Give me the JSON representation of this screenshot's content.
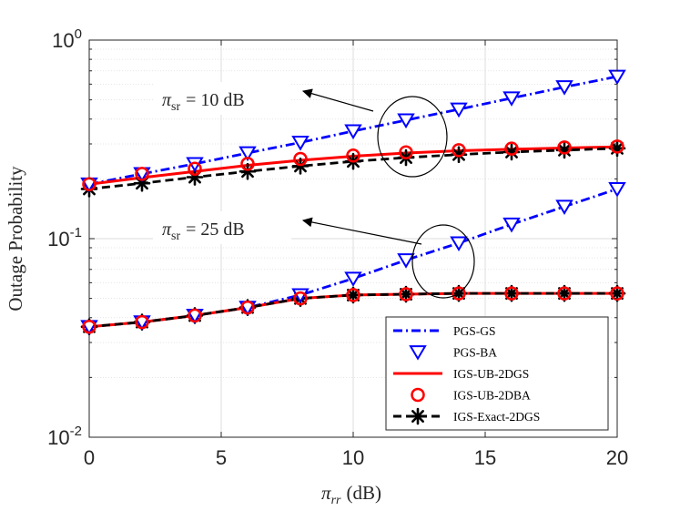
{
  "chart_data": {
    "type": "line",
    "xlabel_symbol": "π",
    "xlabel_sub": "rr",
    "xlabel_unit": "(dB)",
    "ylabel": "Outage Probability",
    "yscale": "log",
    "xlim": [
      0,
      20
    ],
    "ylim": [
      0.01,
      1
    ],
    "grid": true,
    "x_ticks": [
      "0",
      "5",
      "10",
      "15",
      "20"
    ],
    "y_ticks": [
      {
        "value": 1,
        "base": "10",
        "exp": "0"
      },
      {
        "value": 0.1,
        "base": "10",
        "exp": "-1"
      },
      {
        "value": 0.01,
        "base": "10",
        "exp": "-2"
      }
    ],
    "legend_position": "bottom-right",
    "series": [
      {
        "name": "PGS-GS",
        "kind": "line",
        "color": "#0000ff",
        "dash": "dashdot",
        "group": "10 dB",
        "x": [
          0,
          2,
          4,
          6,
          8,
          10,
          12,
          14,
          16,
          18,
          20
        ],
        "y": [
          0.188,
          0.212,
          0.238,
          0.27,
          0.305,
          0.348,
          0.395,
          0.448,
          0.51,
          0.58,
          0.655
        ]
      },
      {
        "name": "PGS-BA",
        "kind": "marker",
        "marker": "triangle-down",
        "color": "#0000ff",
        "group": "10 dB",
        "x": [
          0,
          2,
          4,
          6,
          8,
          10,
          12,
          14,
          16,
          18,
          20
        ],
        "y": [
          0.188,
          0.212,
          0.238,
          0.27,
          0.305,
          0.348,
          0.395,
          0.448,
          0.51,
          0.58,
          0.655
        ]
      },
      {
        "name": "IGS-UB-2DGS",
        "kind": "line",
        "color": "#ff0000",
        "dash": "solid",
        "group": "10 dB",
        "x": [
          0,
          2,
          4,
          6,
          8,
          10,
          12,
          14,
          16,
          18,
          20
        ],
        "y": [
          0.188,
          0.203,
          0.218,
          0.234,
          0.248,
          0.26,
          0.27,
          0.277,
          0.282,
          0.286,
          0.29
        ]
      },
      {
        "name": "IGS-UB-2DBA",
        "kind": "marker",
        "marker": "circle",
        "color": "#ff0000",
        "group": "10 dB",
        "x": [
          0,
          2,
          4,
          6,
          8,
          10,
          12,
          14,
          16,
          18,
          20
        ],
        "y": [
          0.188,
          0.212,
          0.225,
          0.238,
          0.252,
          0.262,
          0.272,
          0.279,
          0.284,
          0.288,
          0.291
        ]
      },
      {
        "name": "IGS-Exact-2DGS",
        "kind": "line-marker",
        "marker": "asterisk",
        "color": "#000000",
        "dash": "dashed",
        "group": "10 dB",
        "x": [
          0,
          2,
          4,
          6,
          8,
          10,
          12,
          14,
          16,
          18,
          20
        ],
        "y": [
          0.178,
          0.19,
          0.204,
          0.218,
          0.232,
          0.245,
          0.256,
          0.265,
          0.273,
          0.279,
          0.285
        ]
      },
      {
        "name": "PGS-GS",
        "kind": "line",
        "color": "#0000ff",
        "dash": "dashdot",
        "group": "25 dB",
        "x": [
          0,
          2,
          4,
          6,
          8,
          10,
          12,
          14,
          16,
          18,
          20
        ],
        "y": [
          0.036,
          0.038,
          0.041,
          0.045,
          0.052,
          0.063,
          0.078,
          0.095,
          0.118,
          0.145,
          0.178
        ]
      },
      {
        "name": "PGS-BA",
        "kind": "marker",
        "marker": "triangle-down",
        "color": "#0000ff",
        "group": "25 dB",
        "x": [
          0,
          2,
          4,
          6,
          8,
          10,
          12,
          14,
          16,
          18,
          20
        ],
        "y": [
          0.036,
          0.038,
          0.041,
          0.045,
          0.052,
          0.063,
          0.078,
          0.095,
          0.118,
          0.145,
          0.178
        ]
      },
      {
        "name": "IGS-UB-2DGS",
        "kind": "line",
        "color": "#ff0000",
        "dash": "solid",
        "group": "25 dB",
        "x": [
          0,
          2,
          4,
          6,
          8,
          10,
          12,
          14,
          16,
          18,
          20
        ],
        "y": [
          0.036,
          0.038,
          0.041,
          0.045,
          0.05,
          0.052,
          0.0525,
          0.053,
          0.053,
          0.053,
          0.053
        ]
      },
      {
        "name": "IGS-UB-2DBA",
        "kind": "marker",
        "marker": "circle",
        "color": "#ff0000",
        "group": "25 dB",
        "x": [
          0,
          2,
          4,
          6,
          8,
          10,
          12,
          14,
          16,
          18,
          20
        ],
        "y": [
          0.036,
          0.038,
          0.041,
          0.045,
          0.05,
          0.052,
          0.0525,
          0.053,
          0.053,
          0.053,
          0.053
        ]
      },
      {
        "name": "IGS-Exact-2DGS",
        "kind": "line-marker",
        "marker": "asterisk",
        "color": "#000000",
        "dash": "dashed",
        "group": "25 dB",
        "x": [
          0,
          2,
          4,
          6,
          8,
          10,
          12,
          14,
          16,
          18,
          20
        ],
        "y": [
          0.036,
          0.038,
          0.041,
          0.045,
          0.05,
          0.052,
          0.0525,
          0.053,
          0.053,
          0.053,
          0.053
        ]
      }
    ],
    "legend": [
      {
        "label": "PGS-GS",
        "color": "#0000ff",
        "line": "dashdot",
        "marker": null
      },
      {
        "label": "PGS-BA",
        "color": "#0000ff",
        "line": null,
        "marker": "triangle-down"
      },
      {
        "label": "IGS-UB-2DGS",
        "color": "#ff0000",
        "line": "solid",
        "marker": null
      },
      {
        "label": "IGS-UB-2DBA",
        "color": "#ff0000",
        "line": null,
        "marker": "circle"
      },
      {
        "label": "IGS-Exact-2DGS",
        "color": "#000000",
        "line": "dashed",
        "marker": "asterisk"
      }
    ],
    "annotations": [
      {
        "symbol": "π",
        "sub": "sr",
        "rest": "= 10 dB",
        "points_to": {
          "x": 12.5,
          "y": 0.32
        }
      },
      {
        "symbol": "π",
        "sub": "sr",
        "rest": "= 25 dB",
        "points_to": {
          "x": 13.5,
          "y": 0.08
        }
      }
    ]
  }
}
